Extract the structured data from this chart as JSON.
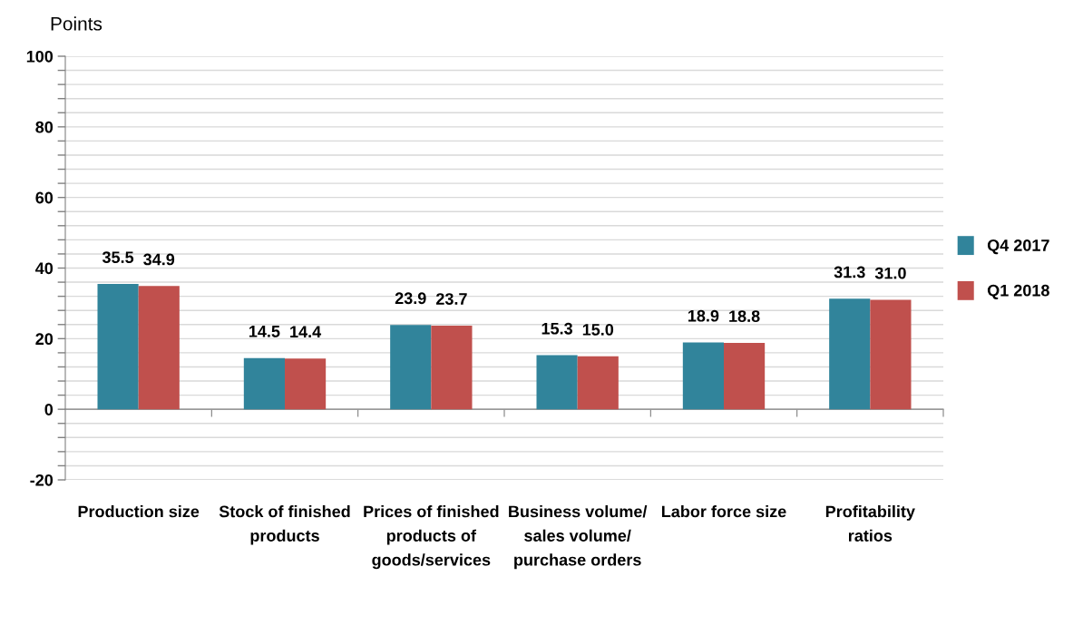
{
  "chart_data": {
    "type": "bar",
    "ylabel": "Points",
    "categories": [
      "Production size",
      "Stock of finished products",
      "Prices of finished products of goods/services",
      "Business volume/ sales volume/ purchase orders",
      "Labor force size",
      "Profitability ratios"
    ],
    "series": [
      {
        "name": "Q4 2017",
        "color": "#31849b",
        "values": [
          35.5,
          14.5,
          23.9,
          15.3,
          18.9,
          31.3
        ],
        "value_labels": [
          "35.5",
          "14.5",
          "23.9",
          "15.3",
          "18.9",
          "31.3"
        ]
      },
      {
        "name": "Q1 2018",
        "color": "#c0504d",
        "values": [
          34.9,
          14.4,
          23.7,
          15.0,
          18.8,
          31.0
        ],
        "value_labels": [
          "34.9",
          "14.4",
          "23.7",
          "15.0",
          "18.8",
          "31.0"
        ]
      }
    ],
    "ylim": [
      -20,
      100
    ],
    "yticks": [
      -20,
      {
        "value": -16,
        "label": null
      },
      {
        "value": -12,
        "label": null
      },
      {
        "value": -8,
        "label": null
      },
      {
        "value": -4,
        "label": null
      },
      0,
      {
        "value": 4,
        "label": null
      },
      {
        "value": 8,
        "label": null
      },
      {
        "value": 12,
        "label": null
      },
      {
        "value": 16,
        "label": null
      },
      20,
      {
        "value": 24,
        "label": null
      },
      {
        "value": 28,
        "label": null
      },
      {
        "value": 32,
        "label": null
      },
      {
        "value": 36,
        "label": null
      },
      40,
      {
        "value": 44,
        "label": null
      },
      {
        "value": 48,
        "label": null
      },
      {
        "value": 52,
        "label": null
      },
      {
        "value": 56,
        "label": null
      },
      60,
      {
        "value": 64,
        "label": null
      },
      {
        "value": 68,
        "label": null
      },
      {
        "value": 72,
        "label": null
      },
      {
        "value": 76,
        "label": null
      },
      80,
      {
        "value": 84,
        "label": null
      },
      {
        "value": 88,
        "label": null
      },
      {
        "value": 92,
        "label": null
      },
      {
        "value": 96,
        "label": null
      },
      100
    ],
    "grid": "y",
    "legend": "right"
  }
}
